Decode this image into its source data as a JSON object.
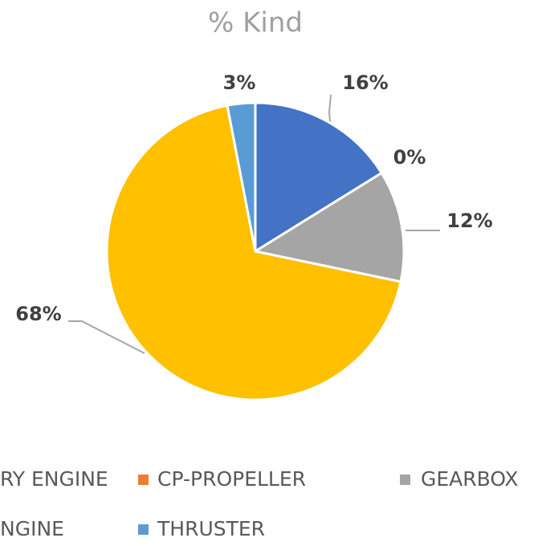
{
  "chart_data": {
    "type": "pie",
    "title": "% Kind",
    "categories": [
      "RY ENGINE",
      "CP-PROPELLER",
      "GEARBOX",
      "NGINE",
      "THRUSTER"
    ],
    "values": [
      16,
      0,
      12,
      68,
      3
    ],
    "value_labels": [
      "16%",
      "0%",
      "12%",
      "68%",
      "3%"
    ],
    "colors": [
      "#4472c4",
      "#ed7d31",
      "#a5a5a5",
      "#ffc000",
      "#5b9bd5"
    ],
    "legend": "bottom"
  }
}
